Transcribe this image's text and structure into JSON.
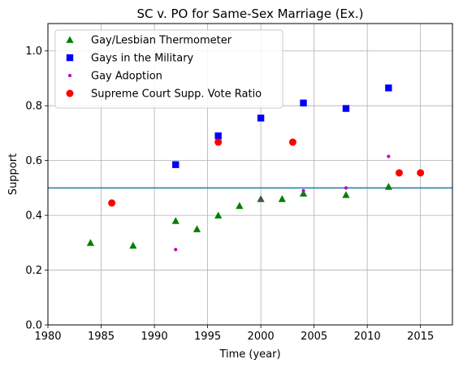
{
  "chart_data": {
    "type": "scatter",
    "title": "SC v. PO for Same-Sex Marriage (Ex.)",
    "xlabel": "Time (year)",
    "ylabel": "Support",
    "xlim": [
      1980,
      2018
    ],
    "ylim": [
      0.0,
      1.1
    ],
    "x_ticks": [
      1980,
      1985,
      1990,
      1995,
      2000,
      2005,
      2010,
      2015
    ],
    "y_ticks": [
      0.0,
      0.2,
      0.4,
      0.6,
      0.8,
      1.0
    ],
    "y_tick_labels": [
      "0.0",
      "0.2",
      "0.4",
      "0.6",
      "0.8",
      "1.0"
    ],
    "grid": true,
    "legend_position": "upper-left",
    "reference_line": {
      "y": 0.5,
      "color": "#1f77b4"
    },
    "series": [
      {
        "name": "Gay/Lesbian Thermometer",
        "marker": "triangle",
        "color": "#008000",
        "points": [
          [
            1984,
            0.3
          ],
          [
            1988,
            0.29
          ],
          [
            1992,
            0.38
          ],
          [
            1994,
            0.35
          ],
          [
            1996,
            0.4
          ],
          [
            1998,
            0.435
          ],
          [
            2000,
            0.46
          ],
          [
            2002,
            0.46
          ],
          [
            2004,
            0.48
          ],
          [
            2008,
            0.475
          ],
          [
            2012,
            0.505
          ]
        ]
      },
      {
        "name": "Gays in the Military",
        "marker": "square",
        "color": "#0000ff",
        "points": [
          [
            1992,
            0.585
          ],
          [
            1996,
            0.69
          ],
          [
            2000,
            0.755
          ],
          [
            2004,
            0.81
          ],
          [
            2008,
            0.79
          ],
          [
            2012,
            0.865
          ]
        ]
      },
      {
        "name": "Gay Adoption",
        "marker": "small-dot",
        "color": "#bf00bf",
        "points": [
          [
            1992,
            0.275
          ],
          [
            2000,
            0.455
          ],
          [
            2004,
            0.49
          ],
          [
            2008,
            0.5
          ],
          [
            2012,
            0.615
          ]
        ]
      },
      {
        "name": "Supreme Court Supp. Vote Ratio",
        "marker": "circle",
        "color": "#ff0000",
        "points": [
          [
            1986,
            0.445
          ],
          [
            1996,
            0.667
          ],
          [
            2003,
            0.667
          ],
          [
            2013,
            0.555
          ],
          [
            2015,
            0.555
          ]
        ]
      }
    ]
  }
}
